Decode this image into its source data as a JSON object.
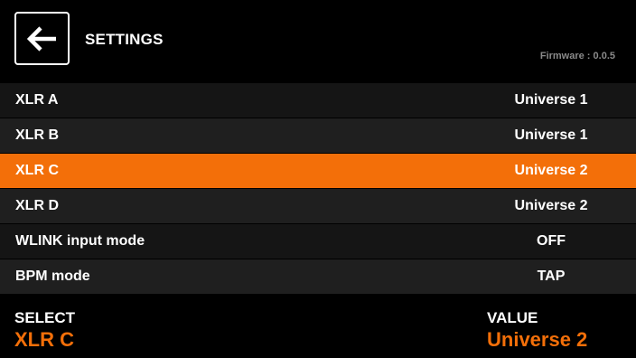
{
  "header": {
    "title": "SETTINGS",
    "firmware": "Firmware : 0.0.5",
    "back_icon": "arrow-left-icon"
  },
  "rows": [
    {
      "label": "XLR A",
      "value": "Universe 1"
    },
    {
      "label": "XLR B",
      "value": "Universe 1"
    },
    {
      "label": "XLR C",
      "value": "Universe 2",
      "selected": true
    },
    {
      "label": "XLR D",
      "value": "Universe 2"
    },
    {
      "label": "WLINK input mode",
      "value": "OFF"
    },
    {
      "label": "BPM mode",
      "value": "TAP"
    }
  ],
  "footer": {
    "select_caption": "SELECT",
    "select_value": "XLR C",
    "value_caption": "VALUE",
    "value_value": "Universe 2"
  },
  "colors": {
    "accent": "#f36f09",
    "background": "#000000",
    "row_dark": "#151515",
    "row_light": "#1f1f1f",
    "muted_text": "#8a8a8a"
  }
}
